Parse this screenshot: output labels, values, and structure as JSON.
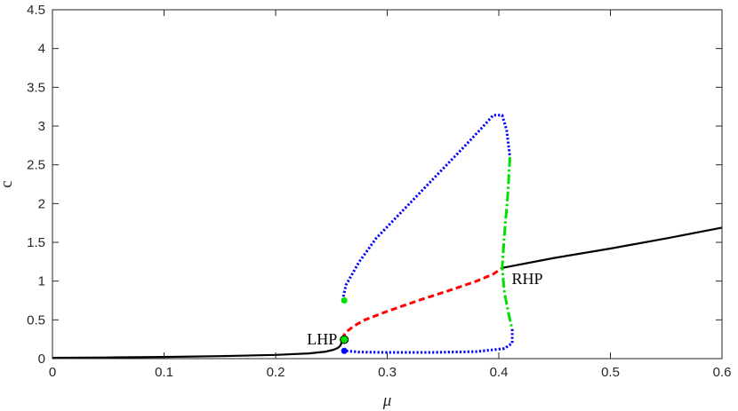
{
  "chart_data": {
    "type": "line",
    "xlabel": "μ",
    "ylabel": "c",
    "xlim": [
      0,
      0.6
    ],
    "ylim": [
      0,
      4.5
    ],
    "xticks": [
      "0",
      "0.1",
      "0.2",
      "0.3",
      "0.4",
      "0.5",
      "0.6"
    ],
    "yticks": [
      "0",
      "0.5",
      "1",
      "1.5",
      "2",
      "2.5",
      "3",
      "3.5",
      "4",
      "4.5"
    ],
    "grid": false,
    "colors": {
      "black": "#000000",
      "red": "#ff0000",
      "blue": "#0000ff",
      "green": "#00e000"
    },
    "series": [
      {
        "style": "solid",
        "color": "black",
        "points": [
          [
            0,
            0.01
          ],
          [
            0.05,
            0.015
          ],
          [
            0.1,
            0.022
          ],
          [
            0.15,
            0.032
          ],
          [
            0.2,
            0.048
          ],
          [
            0.23,
            0.068
          ],
          [
            0.245,
            0.09
          ],
          [
            0.252,
            0.115
          ],
          [
            0.256,
            0.14
          ],
          [
            0.258,
            0.17
          ],
          [
            0.259,
            0.2
          ],
          [
            0.26,
            0.25
          ]
        ]
      },
      {
        "style": "dashed",
        "color": "red",
        "points": [
          [
            0.26,
            0.25
          ],
          [
            0.262,
            0.33
          ],
          [
            0.27,
            0.42
          ],
          [
            0.28,
            0.5
          ],
          [
            0.3,
            0.61
          ],
          [
            0.33,
            0.76
          ],
          [
            0.36,
            0.9
          ],
          [
            0.38,
            1.0
          ],
          [
            0.395,
            1.09
          ],
          [
            0.403,
            1.17
          ]
        ]
      },
      {
        "style": "solid",
        "color": "black",
        "points": [
          [
            0.403,
            1.17
          ],
          [
            0.45,
            1.3
          ],
          [
            0.5,
            1.42
          ],
          [
            0.55,
            1.55
          ],
          [
            0.6,
            1.69
          ]
        ]
      },
      {
        "style": "dotted",
        "color": "blue",
        "points": [
          [
            0.26,
            0.75
          ],
          [
            0.263,
            0.95
          ],
          [
            0.275,
            1.25
          ],
          [
            0.29,
            1.55
          ],
          [
            0.31,
            1.85
          ],
          [
            0.33,
            2.15
          ],
          [
            0.35,
            2.45
          ],
          [
            0.37,
            2.75
          ],
          [
            0.385,
            2.98
          ],
          [
            0.395,
            3.14
          ],
          [
            0.403,
            3.14
          ],
          [
            0.407,
            2.95
          ],
          [
            0.41,
            2.6
          ]
        ]
      },
      {
        "style": "dashdot",
        "color": "green",
        "points": [
          [
            0.41,
            2.6
          ],
          [
            0.408,
            2.1
          ],
          [
            0.405,
            1.6
          ],
          [
            0.403,
            1.17
          ],
          [
            0.405,
            0.85
          ],
          [
            0.41,
            0.5
          ],
          [
            0.412,
            0.38
          ]
        ]
      },
      {
        "style": "dotted",
        "color": "blue",
        "points": [
          [
            0.412,
            0.38
          ],
          [
            0.412,
            0.2
          ],
          [
            0.405,
            0.13
          ],
          [
            0.38,
            0.09
          ],
          [
            0.34,
            0.08
          ],
          [
            0.3,
            0.08
          ],
          [
            0.275,
            0.085
          ],
          [
            0.263,
            0.1
          ]
        ]
      }
    ],
    "markers": [
      {
        "x": 0.2615,
        "y": 0.245,
        "fill": "#00e000",
        "stroke": "#000000",
        "r": 4.5
      },
      {
        "x": 0.2615,
        "y": 0.1,
        "fill": "#0000ff",
        "stroke": "none",
        "r": 3.5
      },
      {
        "x": 0.2615,
        "y": 0.75,
        "fill": "#00e000",
        "stroke": "none",
        "r": 3.5
      }
    ],
    "annotations": [
      {
        "text": "LHP",
        "x": 0.26,
        "y": 0.25,
        "anchor": "end",
        "dx": -6,
        "dy": 6
      },
      {
        "text": "RHP",
        "x": 0.41,
        "y": 1.03,
        "anchor": "start",
        "dx": 2,
        "dy": 6
      }
    ]
  }
}
